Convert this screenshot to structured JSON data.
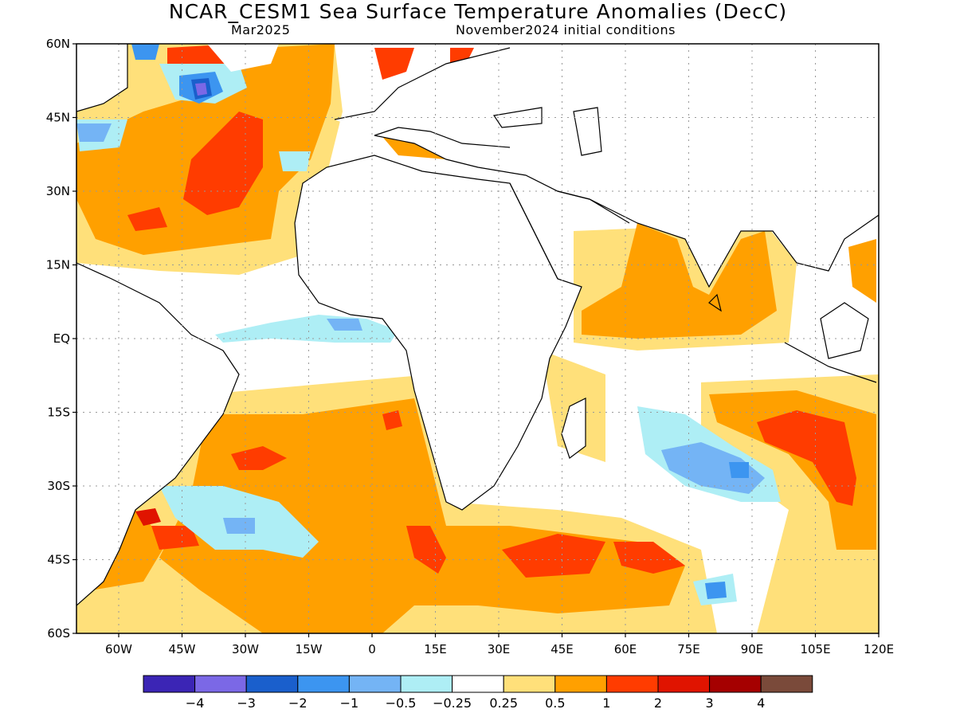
{
  "title": "NCAR_CESM1 Sea Surface Temperature Anomalies (DecC)",
  "subtitle_left": "Mar2025",
  "subtitle_right": "November2024 initial conditions",
  "map": {
    "projection": "equirectangular",
    "lon_range": [
      -70,
      120
    ],
    "lat_range": [
      -60,
      60
    ],
    "grid": "dotted",
    "lat_ticks": [
      {
        "value": 60,
        "label": "60N"
      },
      {
        "value": 45,
        "label": "45N"
      },
      {
        "value": 30,
        "label": "30N"
      },
      {
        "value": 15,
        "label": "15N"
      },
      {
        "value": 0,
        "label": "EQ"
      },
      {
        "value": -15,
        "label": "15S"
      },
      {
        "value": -30,
        "label": "30S"
      },
      {
        "value": -45,
        "label": "45S"
      },
      {
        "value": -60,
        "label": "60S"
      }
    ],
    "lon_ticks": [
      {
        "value": -60,
        "label": "60W"
      },
      {
        "value": -45,
        "label": "45W"
      },
      {
        "value": -30,
        "label": "30W"
      },
      {
        "value": -15,
        "label": "15W"
      },
      {
        "value": 0,
        "label": "0"
      },
      {
        "value": 15,
        "label": "15E"
      },
      {
        "value": 30,
        "label": "30E"
      },
      {
        "value": 45,
        "label": "45E"
      },
      {
        "value": 60,
        "label": "60E"
      },
      {
        "value": 75,
        "label": "75E"
      },
      {
        "value": 90,
        "label": "90E"
      },
      {
        "value": 105,
        "label": "105E"
      },
      {
        "value": 120,
        "label": "120E"
      }
    ]
  },
  "colorbar": {
    "bins": [
      {
        "color": "#3b25b5"
      },
      {
        "color": "#7b68e6"
      },
      {
        "color": "#1a5fcc"
      },
      {
        "color": "#3c95f0"
      },
      {
        "color": "#74b4f5"
      },
      {
        "color": "#aeeef5"
      },
      {
        "color": "#ffffff"
      },
      {
        "color": "#ffe07a"
      },
      {
        "color": "#ffa000"
      },
      {
        "color": "#ff3c00"
      },
      {
        "color": "#e01400"
      },
      {
        "color": "#a50000"
      },
      {
        "color": "#7a4a3a"
      }
    ],
    "labels": [
      "−4",
      "−3",
      "−2",
      "−1",
      "−0.5",
      "−0.25",
      "0.25",
      "0.5",
      "1",
      "2",
      "3",
      "4"
    ]
  }
}
